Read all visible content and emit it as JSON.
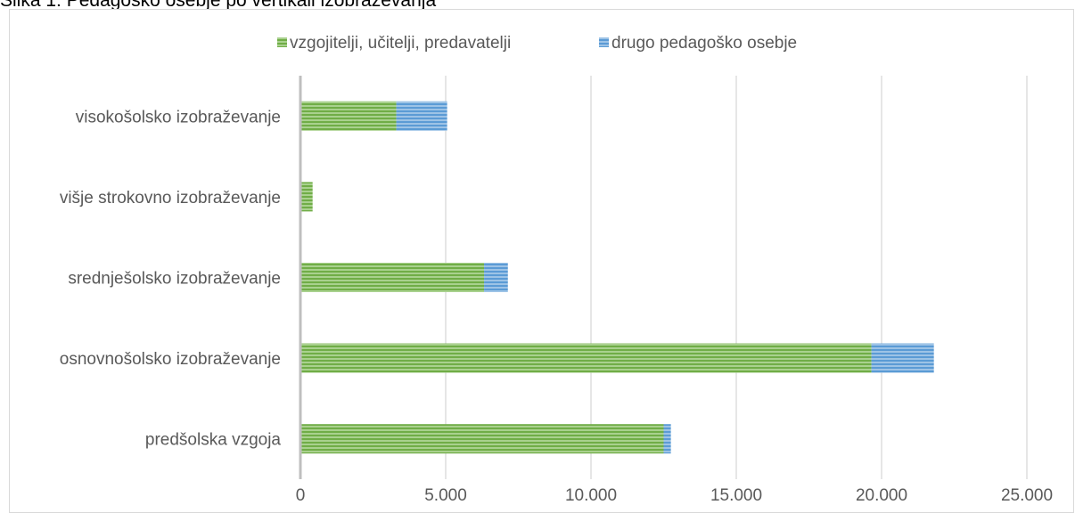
{
  "caption": "Slika 1: Pedagoško osebje po vertikali izobraževanja",
  "chart_data": {
    "type": "bar",
    "orientation": "horizontal",
    "stacked": true,
    "title": "",
    "categories": [
      "predšolska vzgoja",
      "osnovnošolsko izobraževanje",
      "srednješolsko izobraževanje",
      "višje strokovno izobraževanje",
      "visokošolsko izobraževanje"
    ],
    "series": [
      {
        "name": "vzgojitelji, učitelji, predavatelji",
        "color": "#70ad47",
        "values": [
          12500,
          19650,
          6320,
          420,
          3300
        ]
      },
      {
        "name": "drugo pedagoško osebje",
        "color": "#5b9bd5",
        "values": [
          250,
          2150,
          820,
          0,
          1750
        ]
      }
    ],
    "xlim": [
      0,
      25000
    ],
    "xticks": [
      0,
      5000,
      10000,
      15000,
      20000,
      25000
    ],
    "xtick_labels": [
      "0",
      "5.000",
      "10.000",
      "15.000",
      "20.000",
      "25.000"
    ],
    "gridlines": "vertical",
    "legend_position": "top"
  }
}
